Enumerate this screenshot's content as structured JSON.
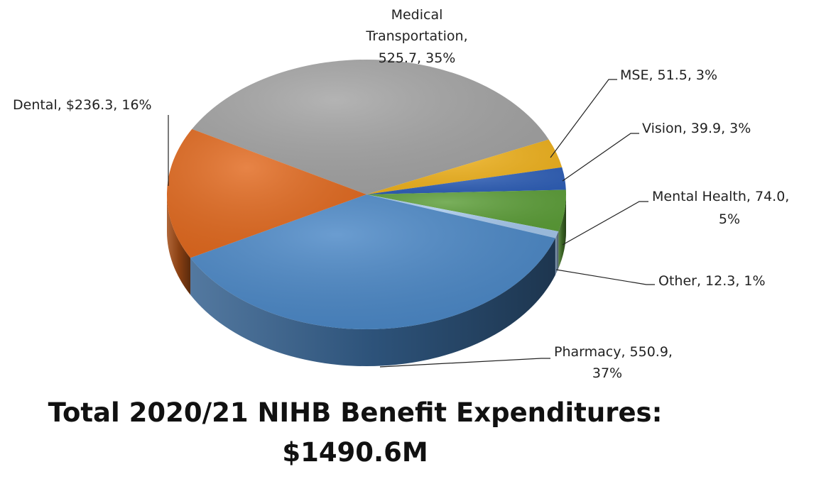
{
  "chart_data": {
    "type": "pie",
    "style": "3d",
    "title": "Total 2020/21 NIHB Benefit Expenditures:",
    "subtitle": "$1490.6M",
    "legend": "none",
    "slices": [
      {
        "name": "Medical Transportation",
        "value": 525.7,
        "percent": "35%",
        "label_l1": "Medical",
        "label_l2": "Transportation,",
        "label_l3": "525.7, 35%",
        "color": "#a3a3a3"
      },
      {
        "name": "MSE",
        "value": 51.5,
        "percent": "3%",
        "label": "MSE, 51.5, 3%",
        "color": "#f0b21c"
      },
      {
        "name": "Vision",
        "value": 39.9,
        "percent": "3%",
        "label": "Vision, 39.9, 3%",
        "color": "#2e5fb8"
      },
      {
        "name": "Mental Health",
        "value": 74.0,
        "percent": "5%",
        "label_l1": "Mental Health, 74.0,",
        "label_l2": "5%",
        "color": "#5c9e38"
      },
      {
        "name": "Other",
        "value": 12.3,
        "percent": "1%",
        "label": "Other, 12.3, 1%",
        "color": "#a6c8ec"
      },
      {
        "name": "Pharmacy",
        "value": 550.9,
        "percent": "37%",
        "label_l1": "Pharmacy, 550.9,",
        "label_l2": "37%",
        "color": "#4a87c6"
      },
      {
        "name": "Dental",
        "value": 236.3,
        "percent": "16%",
        "label": "Dental, $236.3, 16%",
        "color": "#e2691e"
      }
    ]
  }
}
